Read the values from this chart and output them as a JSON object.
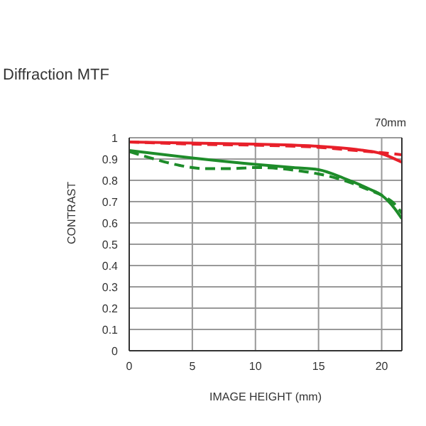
{
  "chart_data": {
    "type": "line",
    "title": "Diffraction  MTF",
    "xlabel": "IMAGE HEIGHT (mm)",
    "ylabel": "CONTRAST",
    "annotations": [
      "70mm"
    ],
    "xlim": [
      0,
      21.6
    ],
    "xticks": [
      0,
      5,
      10,
      15,
      20
    ],
    "ylim": [
      0,
      1
    ],
    "yticks": [
      0,
      0.1,
      0.2,
      0.3,
      0.4,
      0.5,
      0.6,
      0.7,
      0.8,
      0.9,
      1
    ],
    "grid": true,
    "legend": false,
    "marker": "none",
    "series": [
      {
        "color": "#e8202a",
        "line_style": "solid",
        "x": [
          0,
          5,
          10,
          15,
          18,
          20,
          21.6
        ],
        "values": [
          0.98,
          0.975,
          0.97,
          0.96,
          0.945,
          0.925,
          0.885
        ]
      },
      {
        "color": "#e8202a",
        "line_style": "dashed",
        "x": [
          0,
          5,
          10,
          15,
          18,
          20,
          21.6
        ],
        "values": [
          0.98,
          0.97,
          0.965,
          0.955,
          0.94,
          0.93,
          0.92
        ]
      },
      {
        "color": "#1e8c2a",
        "line_style": "solid",
        "x": [
          0,
          5,
          10,
          13,
          15,
          17,
          19,
          20,
          21,
          21.6
        ],
        "values": [
          0.94,
          0.905,
          0.875,
          0.86,
          0.85,
          0.81,
          0.76,
          0.73,
          0.67,
          0.62
        ]
      },
      {
        "color": "#1e8c2a",
        "line_style": "dashed",
        "x": [
          0,
          2,
          4,
          6,
          8,
          10,
          12,
          14,
          15,
          17,
          19,
          20,
          21,
          21.6
        ],
        "values": [
          0.935,
          0.9,
          0.87,
          0.855,
          0.855,
          0.86,
          0.855,
          0.84,
          0.83,
          0.8,
          0.755,
          0.73,
          0.69,
          0.645
        ]
      }
    ]
  }
}
